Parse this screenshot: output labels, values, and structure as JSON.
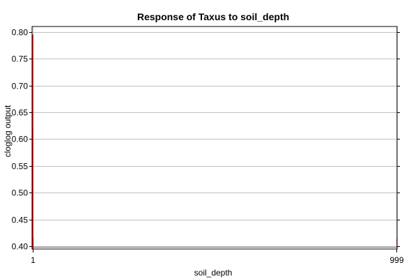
{
  "chart_data": {
    "type": "bar",
    "title": "Response of Taxus to soil_depth",
    "xlabel": "soil_depth",
    "ylabel": "cloglog output",
    "xlim": [
      0.0,
      1000.0
    ],
    "ylim": [
      0.395,
      0.81
    ],
    "yticks": [
      0.4,
      0.45,
      0.5,
      0.55,
      0.6,
      0.65,
      0.7,
      0.75,
      0.8
    ],
    "ytick_labels": [
      "0.40",
      "0.45",
      "0.50",
      "0.55",
      "0.60",
      "0.65",
      "0.70",
      "0.75",
      "0.80"
    ],
    "xticks": [
      1,
      999
    ],
    "xtick_labels": [
      "1",
      "999"
    ],
    "grid": true,
    "baseline": 0.395,
    "series": [
      {
        "color": "#e00000",
        "points": [
          {
            "x": 1,
            "y": 0.62
          },
          {
            "x": 1.35,
            "y": 0.795
          },
          {
            "x": 2.1,
            "y": 0.415
          },
          {
            "x": 998.8,
            "y": 0.415
          }
        ]
      }
    ],
    "colors": {
      "plot_frame": "#000000",
      "grid": "#c0c0c0",
      "zero_line": "#808080"
    }
  }
}
